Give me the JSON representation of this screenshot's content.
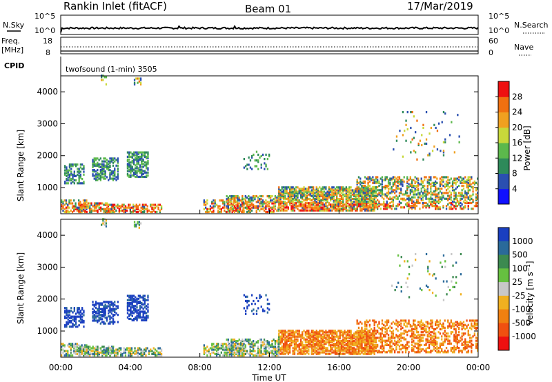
{
  "header": {
    "station": "Rankin Inlet (fitACF)",
    "beam": "Beam 01",
    "date": "17/Mar/2019"
  },
  "strip_panel": {
    "left_label": "N.Sky",
    "left_ticks": [
      "10^5",
      "10^0"
    ],
    "right_label": "N.Search",
    "right_ticks": [
      "10^5",
      "10^0"
    ]
  },
  "freq_panel": {
    "left_label_line1": "Freq.",
    "left_label_line2": "[MHz]",
    "left_ticks": [
      "18",
      "8"
    ],
    "right_label": "Nave",
    "right_ticks": [
      "60",
      "0"
    ],
    "cpid_label": "CPID",
    "cpid_text": "twofsound (1-min) 3505"
  },
  "chart_data": [
    {
      "type": "heatmap",
      "name": "power",
      "ylabel": "Slant Range [km]",
      "yticks": [
        "1000",
        "2000",
        "3000",
        "4000"
      ],
      "yrange": [
        180,
        4500
      ],
      "colorbar_label": "Power [dB]",
      "colorbar_ticks": [
        "4",
        "8",
        "12",
        "16",
        "20",
        "24",
        "28"
      ],
      "colorbar_colors": [
        "#1010ff",
        "#2a4fb0",
        "#2e8a5a",
        "#5cb84c",
        "#c8d83a",
        "#f0a020",
        "#f07010",
        "#ee1010"
      ]
    },
    {
      "type": "heatmap",
      "name": "velocity",
      "ylabel": "Slant Range [km]",
      "yticks": [
        "1000",
        "2000",
        "3000",
        "4000"
      ],
      "yrange": [
        180,
        4500
      ],
      "colorbar_label": "Velocity [m s⁻¹]",
      "colorbar_ticks": [
        "1000",
        "500",
        "100",
        "25",
        "-25",
        "-100",
        "-500",
        "-1000"
      ],
      "colorbar_colors": [
        "#1a3fc0",
        "#2a6a9a",
        "#3c8a50",
        "#66c040",
        "#c8c8c8",
        "#f0b020",
        "#f08010",
        "#f05010",
        "#ee1010"
      ]
    }
  ],
  "xaxis": {
    "ticks": [
      "00:00",
      "04:00",
      "08:00",
      "12:00",
      "16:00",
      "20:00",
      "00:00"
    ],
    "label": "Time UT"
  }
}
